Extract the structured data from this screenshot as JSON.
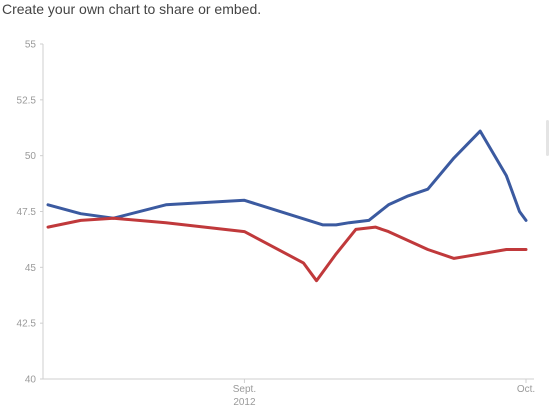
{
  "header": {
    "text": "Create your own chart to share or embed."
  },
  "chart_data": {
    "type": "line",
    "ylim": [
      40,
      55
    ],
    "yticks": [
      "55",
      "52.5",
      "50",
      "47.5",
      "45",
      "42.5",
      "40"
    ],
    "xticks": [
      {
        "x": 22,
        "line1": "Sept.",
        "line2": "2012"
      },
      {
        "x": 65,
        "line1": "Oct.",
        "line2": ""
      }
    ],
    "xlim": [
      -8,
      65
    ],
    "grid": false,
    "series": [
      {
        "color": "#3b5aa0",
        "x": [
          -8,
          -3,
          2,
          10,
          22,
          34,
          36,
          38,
          41,
          44,
          47,
          50,
          54,
          58,
          62,
          64,
          65
        ],
        "values": [
          47.8,
          47.4,
          47.2,
          47.8,
          48.0,
          46.9,
          46.9,
          47.0,
          47.1,
          47.8,
          48.2,
          48.5,
          49.9,
          51.1,
          49.1,
          47.5,
          47.1
        ]
      },
      {
        "color": "#c0393b",
        "x": [
          -8,
          -3,
          2,
          10,
          22,
          31,
          33,
          36,
          39,
          42,
          44,
          50,
          54,
          56,
          62,
          64,
          65
        ],
        "values": [
          46.8,
          47.1,
          47.2,
          47.0,
          46.6,
          45.2,
          44.4,
          45.6,
          46.7,
          46.8,
          46.6,
          45.8,
          45.4,
          45.5,
          45.8,
          45.8,
          45.8
        ]
      }
    ]
  }
}
